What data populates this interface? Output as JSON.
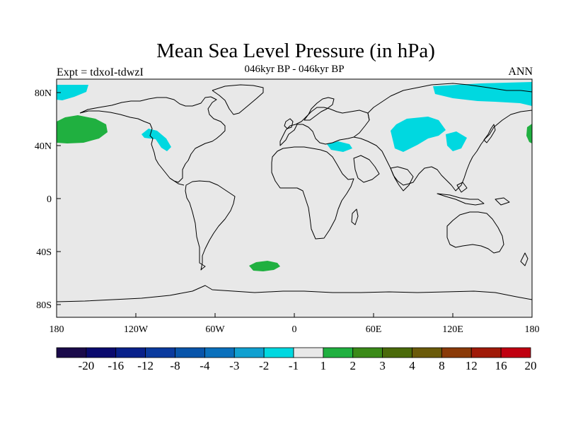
{
  "title": "Mean Sea Level Pressure (in hPa)",
  "subtitle": "046kyr BP - 046kyr BP",
  "left_label": "Expt = tdxoI-tdwzI",
  "right_label": "ANN",
  "axes": {
    "x_ticks": [
      "180",
      "120W",
      "60W",
      "0",
      "60E",
      "120E",
      "180"
    ],
    "y_ticks": [
      "80N",
      "40N",
      "0",
      "40S",
      "80S"
    ]
  },
  "colorbar": {
    "labels": [
      "-20",
      "-16",
      "-12",
      "-8",
      "-4",
      "-3",
      "-2",
      "-1",
      "1",
      "2",
      "3",
      "4",
      "8",
      "12",
      "16",
      "20"
    ],
    "colors": [
      "#1a0a4a",
      "#0a0a6e",
      "#08208a",
      "#0a3a9e",
      "#0854aa",
      "#0a70bc",
      "#10a0d0",
      "#00d8e0",
      "#e8e8e8",
      "#20b040",
      "#3a8a18",
      "#4a6a0a",
      "#6a5a0a",
      "#8a3a08",
      "#a01a08",
      "#c00010"
    ]
  },
  "colors": {
    "background": "#e8e8e8",
    "coast": "#000000",
    "negative_anomaly": "#00d8e0",
    "positive_anomaly": "#20b040"
  }
}
